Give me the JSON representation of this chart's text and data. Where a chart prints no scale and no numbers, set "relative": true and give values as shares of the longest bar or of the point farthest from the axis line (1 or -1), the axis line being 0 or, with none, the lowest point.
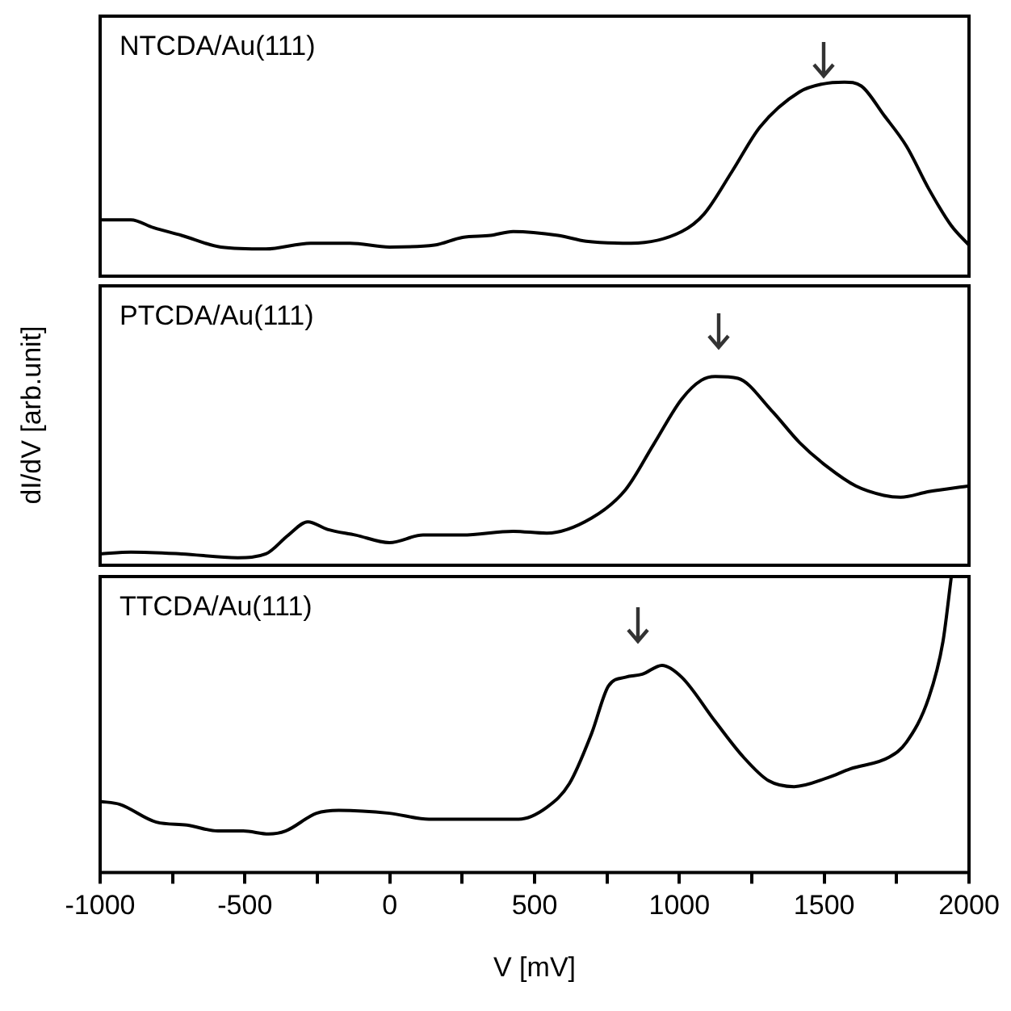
{
  "chart_data": [
    {
      "type": "line",
      "title": "NTCDA/Au(111)",
      "relative": true,
      "xlim": [
        -1000,
        2000
      ],
      "tick_labels": false,
      "grid": false,
      "legend": false,
      "marker": "none",
      "line_style": "solid",
      "series": [
        {
          "color": "#000000",
          "x": [
            -1000,
            -894,
            -816,
            -719,
            -583,
            -428,
            -273,
            -137,
            -1,
            154,
            251,
            348,
            426,
            581,
            678,
            833,
            1008,
            1085,
            1182,
            1279,
            1415,
            1493,
            1570,
            1628,
            1706,
            1784,
            1861,
            1939,
            2000
          ],
          "values": [
            0.29,
            0.29,
            0.25,
            0.21,
            0.15,
            0.14,
            0.17,
            0.17,
            0.15,
            0.16,
            0.2,
            0.21,
            0.23,
            0.21,
            0.18,
            0.17,
            0.23,
            0.32,
            0.54,
            0.77,
            0.95,
            0.99,
            1,
            0.98,
            0.83,
            0.67,
            0.45,
            0.26,
            0.16
          ]
        }
      ]
    },
    {
      "type": "line",
      "title": "PTCDA/Au(111)",
      "ylabel": "dI/dV [arb.unit]",
      "relative": true,
      "xlim": [
        -1000,
        2000
      ],
      "tick_labels": false,
      "grid": false,
      "legend": false,
      "marker": "none",
      "line_style": "solid",
      "series": [
        {
          "color": "#000000",
          "x": [
            -1000,
            -894,
            -719,
            -525,
            -428,
            -350,
            -283,
            -215,
            -118,
            -1,
            115,
            251,
            426,
            542,
            697,
            814,
            911,
            1008,
            1076,
            1124,
            1202,
            1318,
            1415,
            1512,
            1609,
            1706,
            1764,
            1861,
            2000
          ],
          "values": [
            0.06,
            0.07,
            0.06,
            0.04,
            0.06,
            0.16,
            0.23,
            0.19,
            0.16,
            0.12,
            0.16,
            0.16,
            0.18,
            0.17,
            0.25,
            0.4,
            0.64,
            0.88,
            0.98,
            1,
            0.99,
            0.82,
            0.65,
            0.52,
            0.42,
            0.37,
            0.36,
            0.39,
            0.42
          ]
        }
      ]
    },
    {
      "type": "line",
      "title": "TTCDA/Au(111)",
      "xlabel": "V [mV]",
      "relative": true,
      "xlim": [
        -1000,
        2000
      ],
      "tick_labels": "x",
      "grid": false,
      "legend": false,
      "marker": "none",
      "line_style": "solid",
      "xticks": [
        -1000,
        {
          "value": -750,
          "label": null
        },
        -500,
        {
          "value": -250,
          "label": null
        },
        0,
        {
          "value": 250,
          "label": null
        },
        500,
        {
          "value": 750,
          "label": null
        },
        1000,
        {
          "value": 1250,
          "label": null
        },
        1500,
        {
          "value": 1750,
          "label": null
        },
        2000
      ],
      "series": [
        {
          "color": "#000000",
          "x": [
            -1000,
            -932,
            -806,
            -700,
            -593,
            -506,
            -418,
            -360,
            -253,
            -176,
            -1,
            135,
            348,
            445,
            542,
            620,
            697,
            755,
            814,
            872,
            940,
            1008,
            1124,
            1221,
            1308,
            1396,
            1512,
            1590,
            1725,
            1784,
            1861,
            1910,
            1939
          ],
          "values": [
            0.24,
            0.23,
            0.17,
            0.16,
            0.14,
            0.14,
            0.13,
            0.14,
            0.2,
            0.21,
            0.2,
            0.18,
            0.18,
            0.18,
            0.22,
            0.3,
            0.47,
            0.63,
            0.66,
            0.67,
            0.7,
            0.66,
            0.51,
            0.39,
            0.31,
            0.29,
            0.32,
            0.35,
            0.39,
            0.44,
            0.59,
            0.78,
            1
          ]
        }
      ]
    }
  ]
}
